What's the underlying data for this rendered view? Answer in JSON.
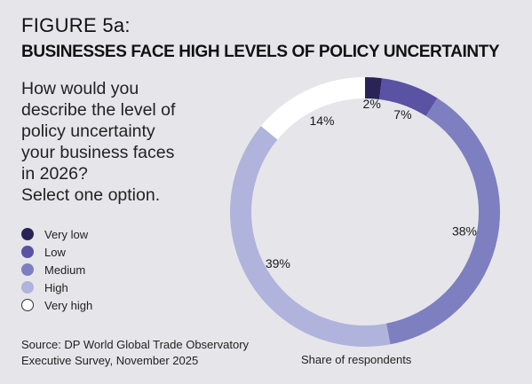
{
  "header": {
    "figure_label": "FIGURE 5a:",
    "title": "BUSINESSES FACE HIGH LEVELS OF POLICY UNCERTAINTY"
  },
  "question": {
    "lines": [
      "How would you",
      "describe the level of",
      "policy uncertainty",
      "your business faces",
      "in 2026?",
      "Select one option."
    ]
  },
  "source": {
    "line1": "Source: DP World Global Trade Observatory",
    "line2": "Executive Survey, November 2025"
  },
  "footnote": "Share of respondents",
  "chart_data": {
    "type": "pie",
    "style": "donut",
    "categories": [
      "Very low",
      "Low",
      "Medium",
      "High",
      "Very high"
    ],
    "values": [
      2,
      7,
      38,
      39,
      14
    ],
    "value_labels": [
      "2%",
      "7%",
      "38%",
      "39%",
      "14%"
    ],
    "colors": [
      "#2a2456",
      "#5a52a3",
      "#7d7fc0",
      "#b0b3dc",
      "#ffffff"
    ],
    "legend": "left",
    "start": "top",
    "direction": "clockwise"
  }
}
